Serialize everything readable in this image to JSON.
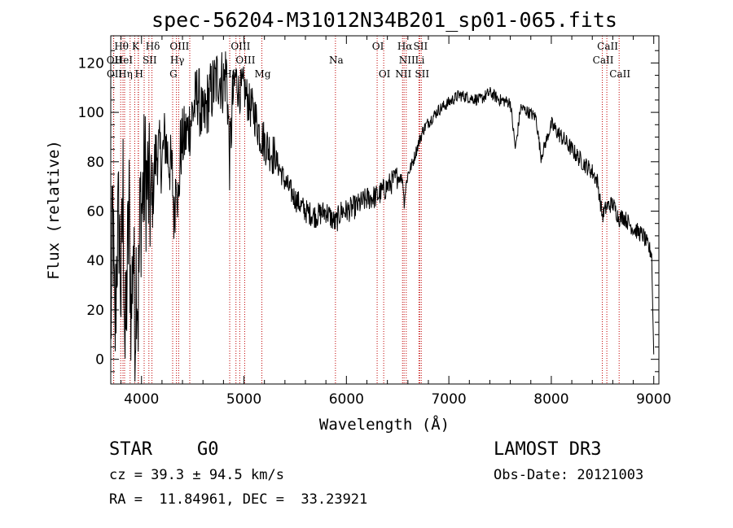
{
  "chart_data": {
    "type": "line",
    "title": "spec-56204-M31012N34B201_sp01-065.fits",
    "xlabel": "Wavelength (Å)",
    "ylabel": "Flux (relative)",
    "xlim": [
      3700,
      9050
    ],
    "ylim": [
      -10,
      131
    ],
    "xticks": [
      4000,
      5000,
      6000,
      7000,
      8000,
      9000
    ],
    "yticks": [
      0,
      20,
      40,
      60,
      80,
      100,
      120
    ],
    "series": [
      {
        "name": "flux",
        "x": [
          3700,
          3720,
          3740,
          3760,
          3780,
          3800,
          3820,
          3840,
          3860,
          3880,
          3900,
          3920,
          3935,
          3950,
          3968,
          3990,
          4000,
          4030,
          4060,
          4101,
          4130,
          4160,
          4200,
          4230,
          4260,
          4300,
          4320,
          4340,
          4360,
          4380,
          4400,
          4450,
          4500,
          4550,
          4600,
          4650,
          4700,
          4750,
          4800,
          4830,
          4861,
          4890,
          4920,
          4950,
          5000,
          5050,
          5100,
          5150,
          5200,
          5300,
          5400,
          5500,
          5600,
          5700,
          5800,
          5893,
          5950,
          6000,
          6100,
          6200,
          6300,
          6400,
          6450,
          6500,
          6550,
          6563,
          6580,
          6600,
          6650,
          6700,
          6750,
          6800,
          6900,
          7000,
          7100,
          7200,
          7300,
          7400,
          7500,
          7600,
          7650,
          7700,
          7780,
          7850,
          7900,
          8000,
          8100,
          8200,
          8300,
          8400,
          8450,
          8498,
          8542,
          8600,
          8662,
          8700,
          8800,
          8900,
          8950,
          8980,
          8990,
          9000
        ],
        "y": [
          10,
          60,
          5,
          45,
          58,
          25,
          70,
          0,
          35,
          60,
          15,
          52,
          5,
          40,
          20,
          65,
          60,
          75,
          70,
          60,
          80,
          85,
          80,
          90,
          82,
          75,
          55,
          80,
          60,
          85,
          88,
          92,
          100,
          108,
          95,
          105,
          110,
          115,
          112,
          118,
          80,
          105,
          115,
          108,
          110,
          103,
          100,
          92,
          88,
          82,
          72,
          65,
          60,
          58,
          60,
          55,
          60,
          60,
          62,
          65,
          66,
          70,
          72,
          74,
          73,
          63,
          70,
          75,
          80,
          87,
          93,
          96,
          101,
          104,
          107,
          106,
          105,
          108,
          105,
          104,
          85,
          102,
          100,
          98,
          82,
          95,
          90,
          85,
          80,
          76,
          72,
          58,
          62,
          63,
          57,
          58,
          53,
          50,
          45,
          43,
          20,
          2
        ]
      }
    ],
    "lines_top": [
      {
        "label": "Hθ",
        "x": 3797
      },
      {
        "label": "K",
        "x": 3934
      },
      {
        "label": "Hδ",
        "x": 4102
      },
      {
        "label": "OIII",
        "x": 4363
      },
      {
        "label": "OIII",
        "x": 4959
      },
      {
        "label": "OI",
        "x": 6300
      },
      {
        "label": "Hα",
        "x": 6563
      },
      {
        "label": "SII",
        "x": 6716
      },
      {
        "label": "CaII",
        "x": 8542
      }
    ],
    "lines_mid": [
      {
        "label": "OII",
        "x": 3727
      },
      {
        "label": "HeI",
        "x": 3819
      },
      {
        "label": "SII",
        "x": 4072
      },
      {
        "label": "Hγ",
        "x": 4341
      },
      {
        "label": "OIII",
        "x": 5007
      },
      {
        "label": "Na",
        "x": 5893
      },
      {
        "label": "NII",
        "x": 6584
      },
      {
        "label": "Li",
        "x": 6708
      },
      {
        "label": "CaII",
        "x": 8498
      }
    ],
    "lines_low": [
      {
        "label": "OII",
        "x": 3729
      },
      {
        "label": "Hη",
        "x": 3835
      },
      {
        "label": "H",
        "x": 3968
      },
      {
        "label": "G",
        "x": 4304
      },
      {
        "label": "Hβ",
        "x": 4861
      },
      {
        "label": "Mg",
        "x": 5175
      },
      {
        "label": "OI",
        "x": 6364
      },
      {
        "label": "NII",
        "x": 6548
      },
      {
        "label": "SII",
        "x": 6731
      },
      {
        "label": "CaII",
        "x": 8662
      }
    ],
    "extra_line_markers": [
      3889,
      3970,
      4026,
      4471,
      4922
    ]
  },
  "info": {
    "class": "STAR",
    "subclass": "G0",
    "survey": "LAMOST DR3",
    "cz": "cz = 39.3 ± 94.5 km/s",
    "obs_date": "Obs-Date: 20121003",
    "radec": "RA =  11.84961, DEC =  33.23921"
  }
}
